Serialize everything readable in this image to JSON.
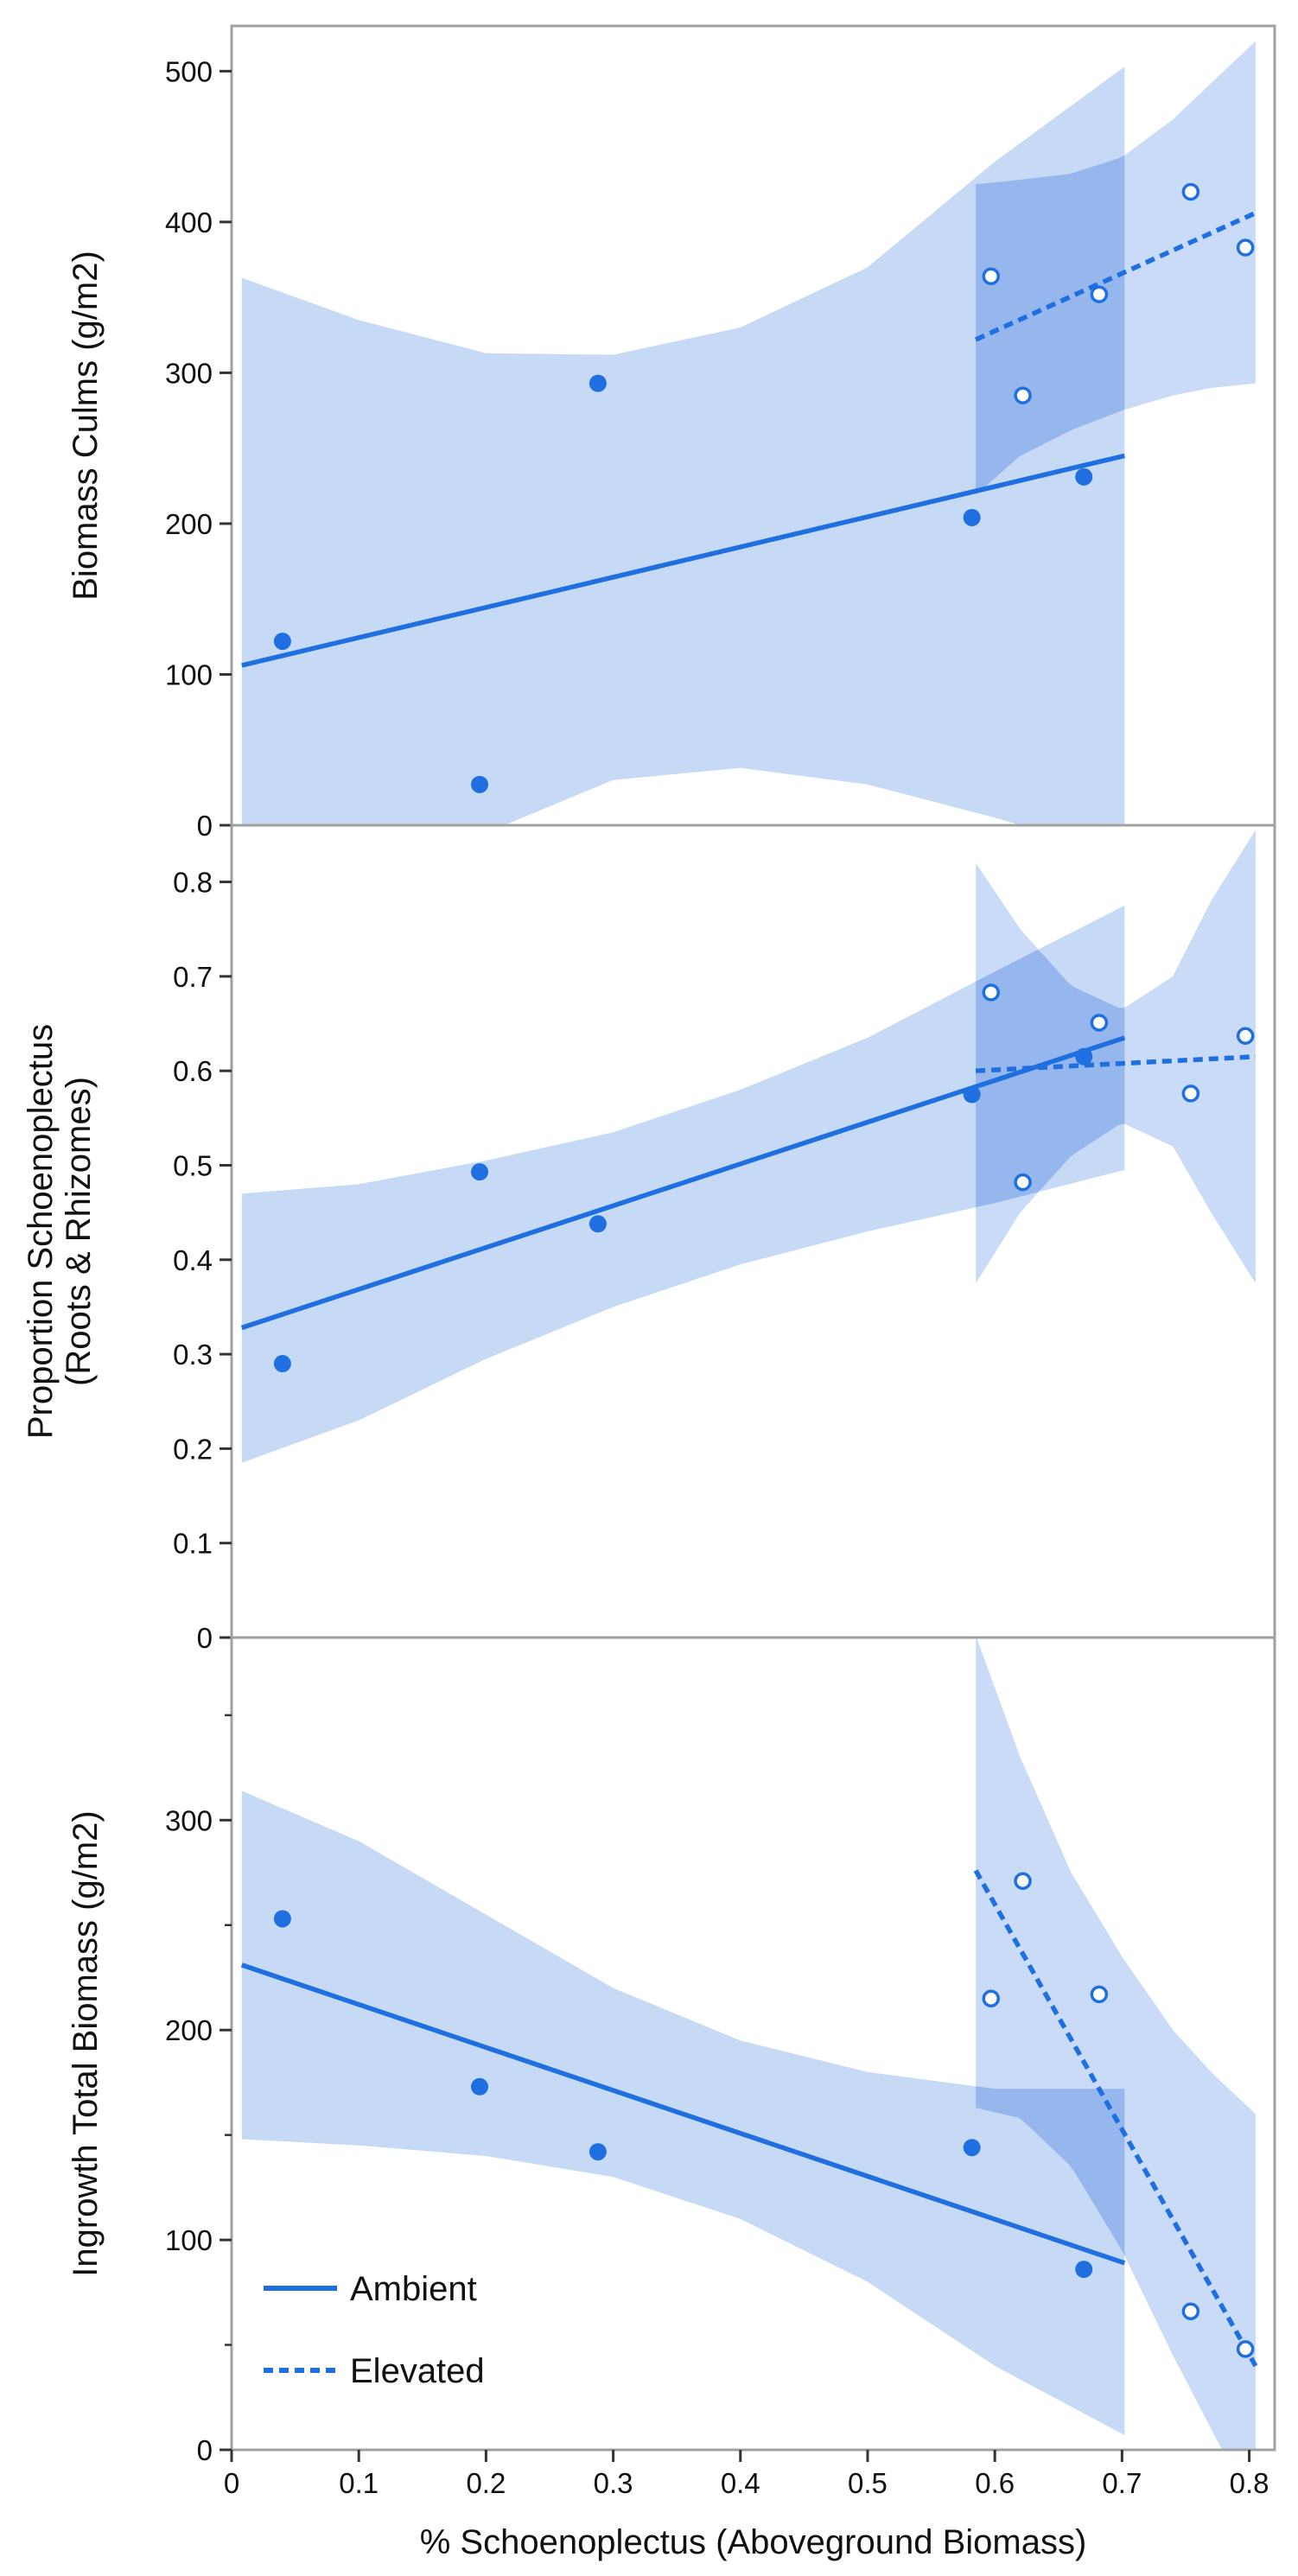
{
  "colors": {
    "line": "#1f6fe0",
    "band": "#b4cdf2",
    "band_overlap": "#8fb2ec",
    "frame": "#a0a0a0",
    "text": "#111111"
  },
  "xaxis": {
    "label": "% Schoenoplectus (Aboveground Biomass)",
    "range": [
      0,
      0.82
    ],
    "ticks": [
      0,
      0.1,
      0.2,
      0.3,
      0.4,
      0.5,
      0.6,
      0.7,
      0.8
    ],
    "tick_labels": [
      "0",
      "0.1",
      "0.2",
      "0.3",
      "0.4",
      "0.5",
      "0.6",
      "0.7",
      "0.8"
    ]
  },
  "legend": {
    "position": "bottom-left of bottom panel",
    "entries": [
      {
        "label": "Ambient",
        "style": "solid"
      },
      {
        "label": "Elevated",
        "style": "dashed"
      }
    ]
  },
  "chart_data": [
    {
      "type": "scatter",
      "id": "culms",
      "ylabel": [
        "Biomass Culms (g/m2)"
      ],
      "ylim": [
        0,
        530
      ],
      "yticks": [
        0,
        100,
        200,
        300,
        400,
        500
      ],
      "ytick_labels": [
        "0",
        "100",
        "200",
        "300",
        "400",
        "500"
      ],
      "minor_yticks": [],
      "series": [
        {
          "name": "Ambient",
          "marker": "filled",
          "points": [
            [
              0.04,
              122
            ],
            [
              0.195,
              27
            ],
            [
              0.288,
              293
            ],
            [
              0.582,
              204
            ],
            [
              0.67,
              231
            ]
          ],
          "fit": [
            [
              0.008,
              106
            ],
            [
              0.702,
              245
            ]
          ],
          "band_x": [
            0.008,
            0.1,
            0.2,
            0.3,
            0.4,
            0.5,
            0.6,
            0.702
          ],
          "band_upper": [
            363,
            335,
            313,
            312,
            330,
            370,
            440,
            503
          ],
          "band_lower": [
            -80,
            -40,
            -5,
            30,
            38,
            27,
            5,
            -20
          ]
        },
        {
          "name": "Elevated",
          "marker": "open",
          "points": [
            [
              0.597,
              364
            ],
            [
              0.622,
              285
            ],
            [
              0.682,
              352
            ],
            [
              0.754,
              420
            ],
            [
              0.797,
              383
            ]
          ],
          "fit": [
            [
              0.585,
              322
            ],
            [
              0.805,
              406
            ]
          ],
          "band_x": [
            0.585,
            0.62,
            0.66,
            0.7,
            0.74,
            0.77,
            0.805
          ],
          "band_upper": [
            425,
            428,
            432,
            443,
            468,
            492,
            520
          ],
          "band_lower": [
            219,
            245,
            262,
            275,
            285,
            290,
            293
          ]
        }
      ]
    },
    {
      "type": "scatter",
      "id": "proportion",
      "ylabel": [
        "Proportion Schoenoplectus",
        "(Roots & Rhizomes)"
      ],
      "ylim": [
        0,
        0.86
      ],
      "yticks": [
        0,
        0.1,
        0.2,
        0.3,
        0.4,
        0.5,
        0.6,
        0.7,
        0.8
      ],
      "ytick_labels": [
        "0",
        "0.1",
        "0.2",
        "0.3",
        "0.4",
        "0.5",
        "0.6",
        "0.7",
        "0.8"
      ],
      "minor_yticks": [],
      "series": [
        {
          "name": "Ambient",
          "marker": "filled",
          "points": [
            [
              0.04,
              0.29
            ],
            [
              0.195,
              0.493
            ],
            [
              0.288,
              0.438
            ],
            [
              0.582,
              0.575
            ],
            [
              0.67,
              0.615
            ]
          ],
          "fit": [
            [
              0.008,
              0.328
            ],
            [
              0.702,
              0.635
            ]
          ],
          "band_x": [
            0.008,
            0.1,
            0.2,
            0.3,
            0.4,
            0.5,
            0.6,
            0.702
          ],
          "band_upper": [
            0.47,
            0.48,
            0.505,
            0.535,
            0.58,
            0.635,
            0.705,
            0.775
          ],
          "band_lower": [
            0.185,
            0.23,
            0.295,
            0.35,
            0.395,
            0.43,
            0.46,
            0.495
          ]
        },
        {
          "name": "Elevated",
          "marker": "open",
          "points": [
            [
              0.597,
              0.683
            ],
            [
              0.622,
              0.482
            ],
            [
              0.682,
              0.651
            ],
            [
              0.754,
              0.576
            ],
            [
              0.797,
              0.637
            ]
          ],
          "fit": [
            [
              0.585,
              0.6
            ],
            [
              0.805,
              0.615
            ]
          ],
          "band_x": [
            0.585,
            0.62,
            0.66,
            0.7,
            0.74,
            0.77,
            0.805
          ],
          "band_upper": [
            0.82,
            0.75,
            0.69,
            0.665,
            0.7,
            0.78,
            0.855
          ],
          "band_lower": [
            0.375,
            0.45,
            0.51,
            0.545,
            0.52,
            0.45,
            0.375
          ]
        }
      ]
    },
    {
      "type": "scatter",
      "id": "ingrowth",
      "ylabel": [
        "Ingrowth Total Biomass (g/m2)"
      ],
      "ylim": [
        0,
        387
      ],
      "yticks": [
        0,
        100,
        200,
        300
      ],
      "ytick_labels": [
        "0",
        "100",
        "200",
        "300"
      ],
      "minor_yticks": [
        50,
        150,
        250,
        350
      ],
      "series": [
        {
          "name": "Ambient",
          "marker": "filled",
          "points": [
            [
              0.04,
              253
            ],
            [
              0.195,
              173
            ],
            [
              0.288,
              142
            ],
            [
              0.582,
              144
            ],
            [
              0.67,
              86
            ]
          ],
          "fit": [
            [
              0.008,
              231
            ],
            [
              0.702,
              89
            ]
          ],
          "band_x": [
            0.008,
            0.1,
            0.2,
            0.3,
            0.4,
            0.5,
            0.6,
            0.702
          ],
          "band_upper": [
            314,
            290,
            255,
            220,
            195,
            180,
            172,
            172
          ],
          "band_lower": [
            148,
            145,
            140,
            130,
            110,
            80,
            40,
            7
          ]
        },
        {
          "name": "Elevated",
          "marker": "open",
          "points": [
            [
              0.597,
              215
            ],
            [
              0.622,
              271
            ],
            [
              0.682,
              217
            ],
            [
              0.754,
              66
            ],
            [
              0.797,
              48
            ]
          ],
          "fit": [
            [
              0.585,
              276
            ],
            [
              0.805,
              40
            ]
          ],
          "band_x": [
            0.585,
            0.62,
            0.66,
            0.7,
            0.74,
            0.77,
            0.805
          ],
          "band_upper": [
            388,
            330,
            275,
            235,
            200,
            180,
            160
          ],
          "band_lower": [
            163,
            158,
            135,
            95,
            45,
            10,
            -30
          ]
        }
      ]
    }
  ]
}
